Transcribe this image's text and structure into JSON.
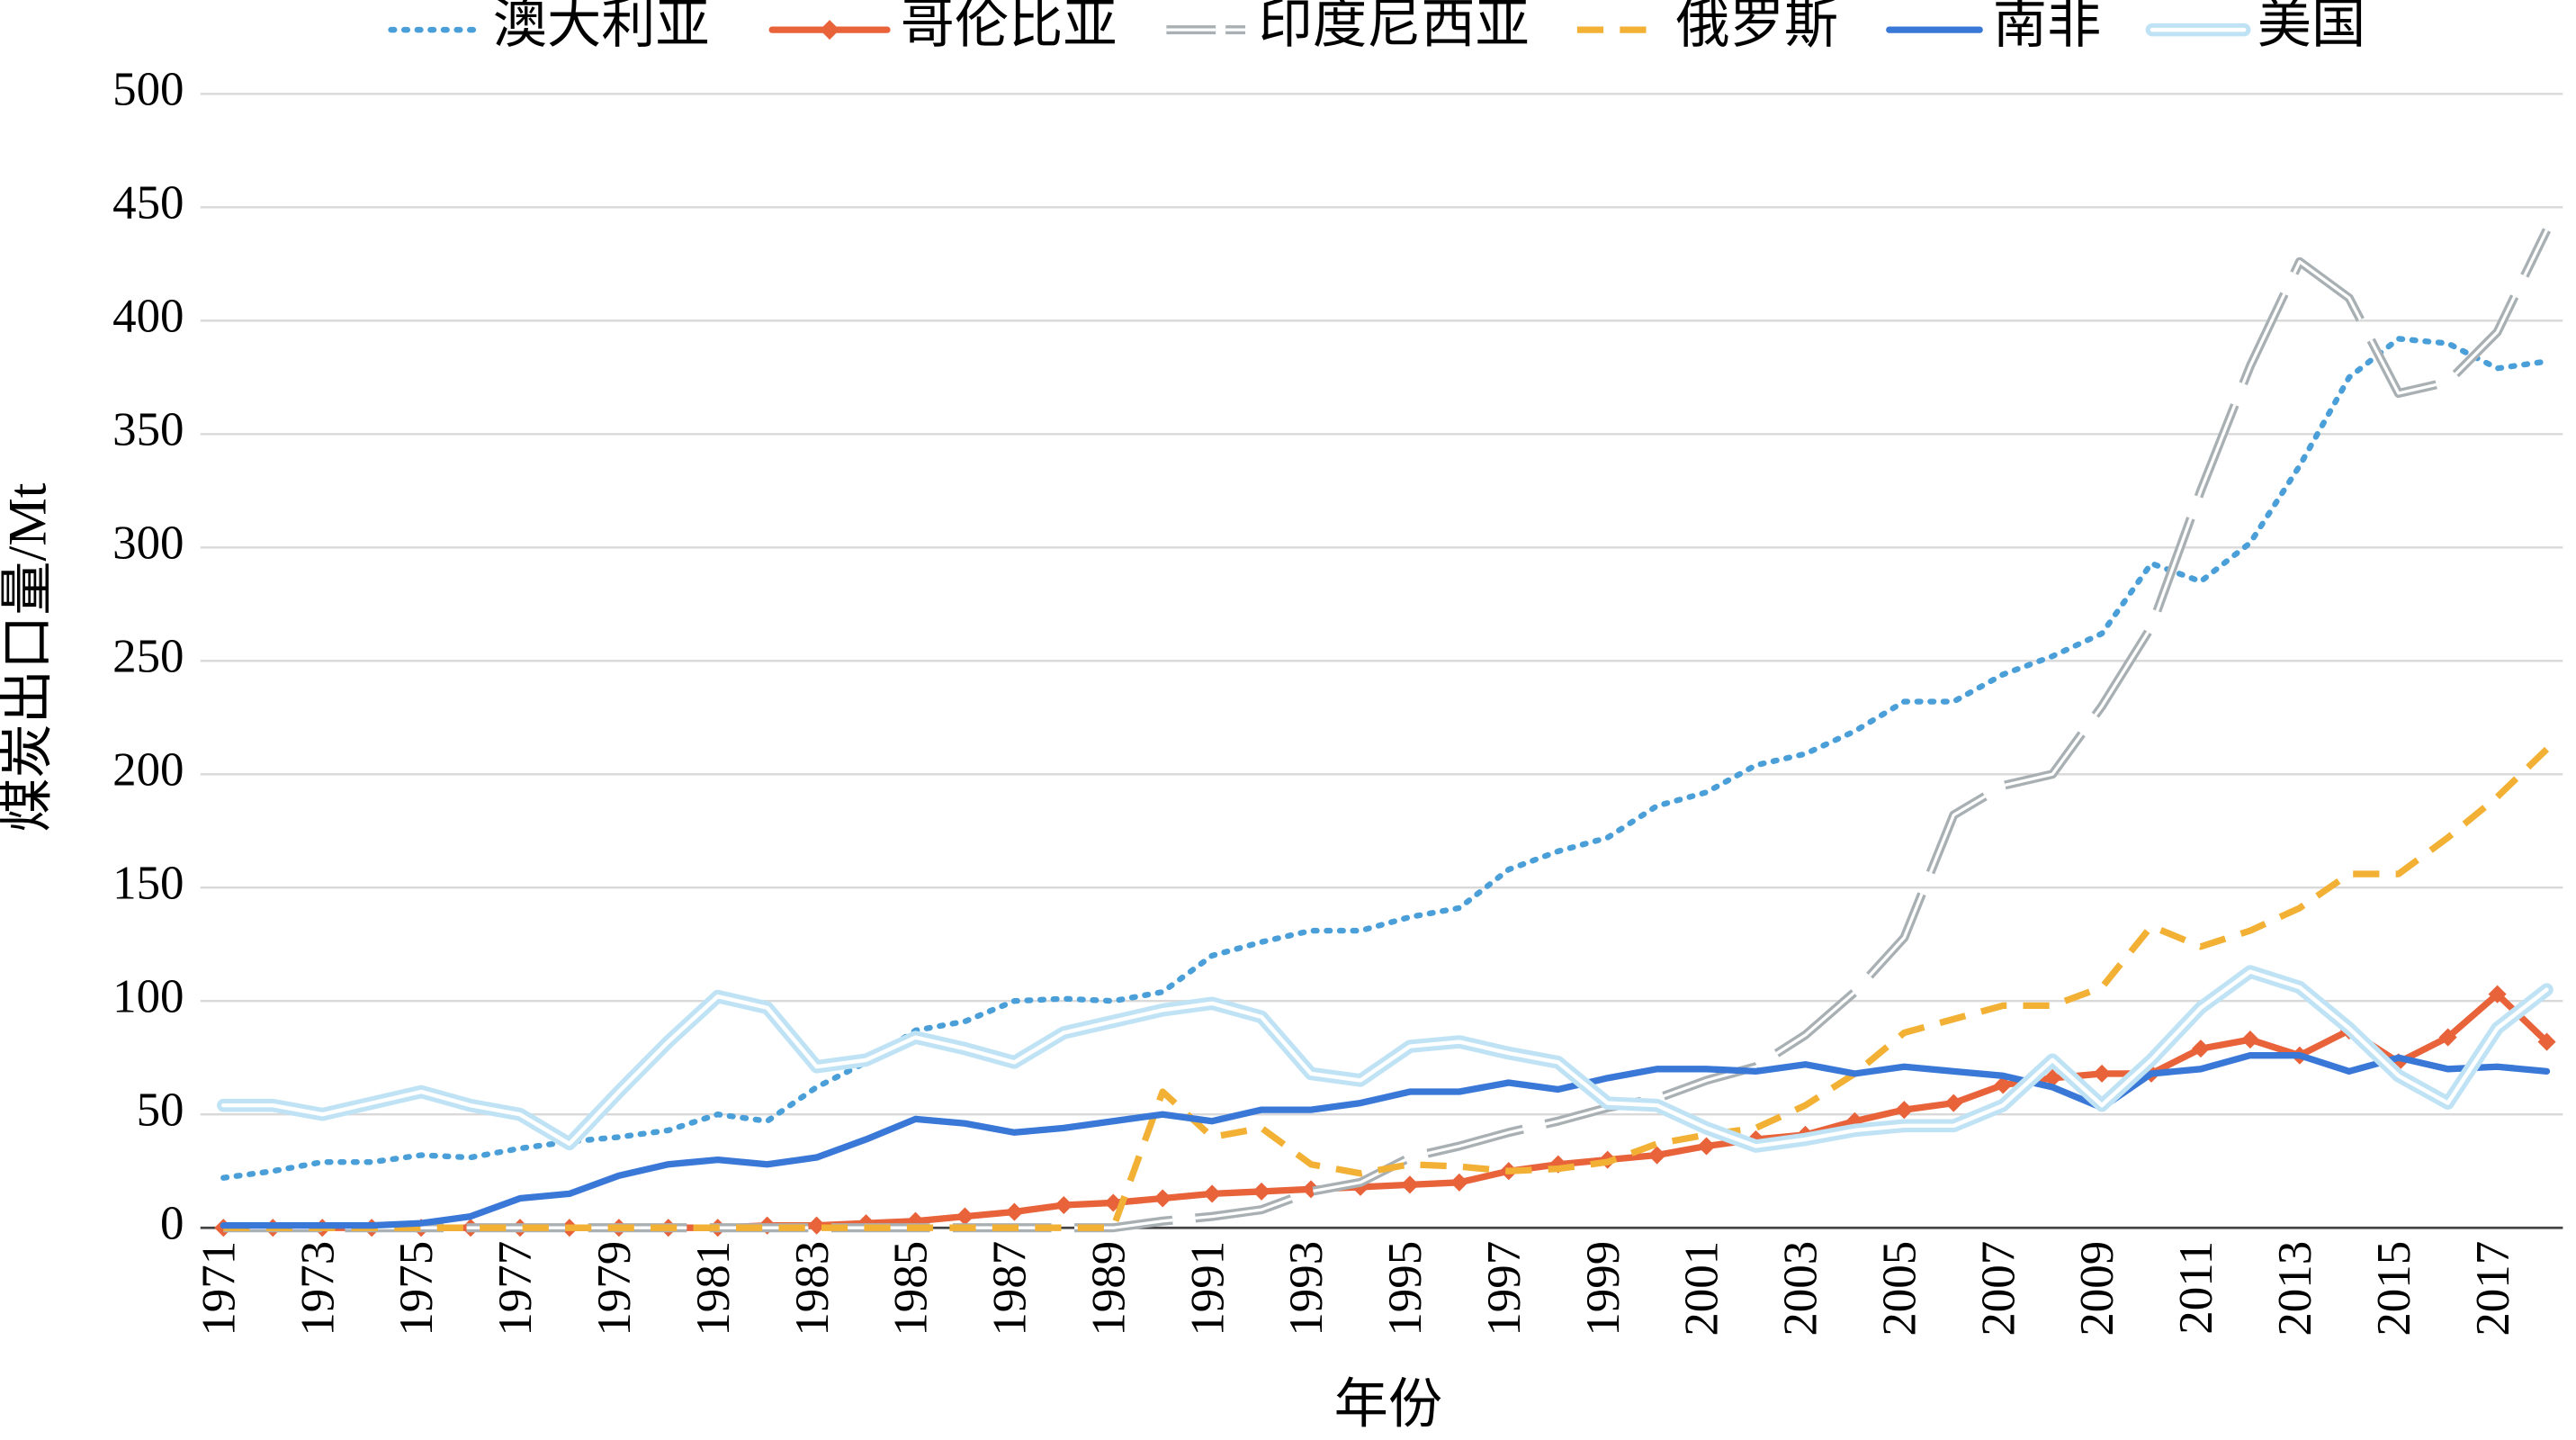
{
  "chart_data": {
    "type": "line",
    "xlabel": "年份",
    "ylabel": "煤炭出口量/Mt",
    "categories": [
      "1971",
      null,
      "1973",
      null,
      "1975",
      null,
      "1977",
      null,
      "1979",
      null,
      "1981",
      null,
      "1983",
      null,
      "1985",
      null,
      "1987",
      null,
      "1989",
      null,
      "1991",
      null,
      "1993",
      null,
      "1995",
      null,
      "1997",
      null,
      "1999",
      null,
      "2001",
      null,
      "2003",
      null,
      "2005",
      null,
      "2007",
      null,
      "2009",
      null,
      "2011",
      null,
      "2013",
      null,
      "2015",
      null,
      "2017",
      null
    ],
    "ylim": [
      0,
      500
    ],
    "yticks": [
      0,
      50,
      100,
      150,
      200,
      250,
      300,
      350,
      400,
      450,
      500
    ],
    "grid": true,
    "legend": "top",
    "series": [
      {
        "name": "澳大利亚",
        "color": "#4a9fd8",
        "dash": "dotted",
        "values": [
          22,
          25,
          29,
          29,
          32,
          31,
          35,
          38,
          40,
          43,
          50,
          47,
          62,
          73,
          87,
          91,
          100,
          101,
          100,
          104,
          120,
          126,
          131,
          131,
          137,
          141,
          158,
          166,
          172,
          186,
          192,
          204,
          209,
          219,
          232,
          232,
          244,
          252,
          262,
          293,
          285,
          302,
          336,
          375,
          392,
          390,
          379,
          382
        ]
      },
      {
        "name": "哥伦比亚",
        "color": "#e8623a",
        "dash": "solid",
        "marker": "diamond",
        "values": [
          0,
          0,
          0,
          0,
          0,
          0,
          0,
          0,
          0,
          0,
          0,
          1,
          1,
          2,
          3,
          5,
          7,
          10,
          11,
          13,
          15,
          16,
          17,
          18,
          19,
          20,
          25,
          28,
          30,
          32,
          36,
          39,
          41,
          47,
          52,
          55,
          63,
          66,
          68,
          68,
          79,
          83,
          76,
          87,
          73,
          84,
          103,
          82
        ]
      },
      {
        "name": "印度尼西亚",
        "color": "#a9b0b3",
        "dash": "double-long",
        "values": [
          0,
          0,
          0,
          0,
          0,
          0,
          0,
          0,
          0,
          0,
          0,
          0,
          0,
          0,
          0,
          0,
          0,
          0,
          0,
          3,
          5,
          8,
          16,
          20,
          31,
          36,
          42,
          47,
          53,
          57,
          65,
          71,
          85,
          104,
          128,
          182,
          195,
          200,
          230,
          265,
          325,
          380,
          426,
          410,
          368,
          373,
          395,
          440
        ]
      },
      {
        "name": "俄罗斯",
        "color": "#f2b134",
        "dash": "dashed",
        "values": [
          0,
          0,
          0,
          0,
          0,
          0,
          0,
          0,
          0,
          0,
          0,
          0,
          0,
          0,
          0,
          0,
          0,
          0,
          0,
          60,
          40,
          44,
          28,
          24,
          28,
          27,
          25,
          26,
          29,
          37,
          41,
          44,
          54,
          68,
          86,
          92,
          98,
          98,
          106,
          133,
          124,
          131,
          141,
          156,
          156,
          172,
          190,
          211
        ]
      },
      {
        "name": "南非",
        "color": "#3a78d8",
        "dash": "solid",
        "values": [
          1,
          1,
          1,
          1,
          2,
          5,
          13,
          15,
          23,
          28,
          30,
          28,
          31,
          39,
          48,
          46,
          42,
          44,
          47,
          50,
          47,
          52,
          52,
          55,
          60,
          60,
          64,
          61,
          66,
          70,
          70,
          69,
          72,
          68,
          71,
          69,
          67,
          62,
          53,
          68,
          70,
          76,
          76,
          69,
          75,
          70,
          71,
          69
        ]
      },
      {
        "name": "美国",
        "color": "#bfe3f5",
        "dash": "double",
        "values": [
          54,
          54,
          50,
          55,
          60,
          54,
          50,
          37,
          60,
          82,
          102,
          97,
          71,
          74,
          84,
          79,
          73,
          86,
          91,
          96,
          99,
          93,
          68,
          65,
          80,
          82,
          77,
          73,
          55,
          54,
          44,
          36,
          39,
          43,
          45,
          45,
          54,
          74,
          54,
          74,
          97,
          113,
          106,
          88,
          67,
          55,
          88,
          105
        ]
      }
    ]
  }
}
